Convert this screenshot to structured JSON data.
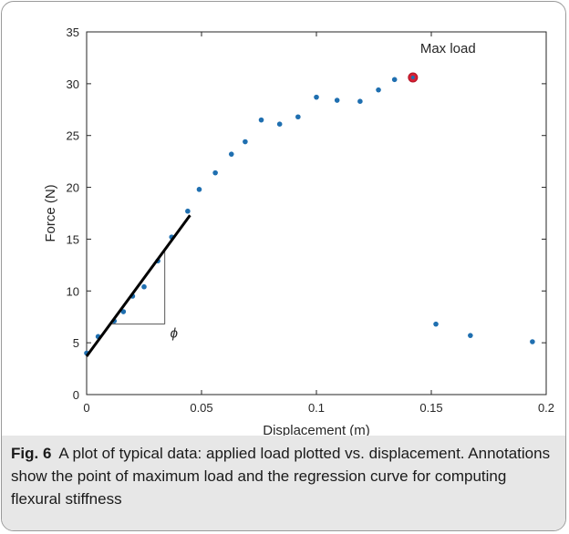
{
  "chart_data": {
    "type": "scatter",
    "xlabel": "Displacement (m)",
    "ylabel": "Force (N)",
    "xlim": [
      0,
      0.2
    ],
    "ylim": [
      0,
      35
    ],
    "xticks": [
      0,
      0.05,
      0.1,
      0.15,
      0.2
    ],
    "xtick_labels": [
      "0",
      "0.05",
      "0.1",
      "0.15",
      "0.2"
    ],
    "yticks": [
      0,
      5,
      10,
      15,
      20,
      25,
      30,
      35
    ],
    "ytick_labels": [
      "0",
      "5",
      "10",
      "15",
      "20",
      "25",
      "30",
      "35"
    ],
    "grid": false,
    "marker_color": "#1f6fb0",
    "highlight_color": "#d62034",
    "line_color": "#000000",
    "points": [
      {
        "x": 0.0,
        "y": 4.0
      },
      {
        "x": 0.005,
        "y": 5.6
      },
      {
        "x": 0.012,
        "y": 7.1
      },
      {
        "x": 0.016,
        "y": 8.0
      },
      {
        "x": 0.02,
        "y": 9.5
      },
      {
        "x": 0.025,
        "y": 10.4
      },
      {
        "x": 0.031,
        "y": 12.9
      },
      {
        "x": 0.037,
        "y": 15.2
      },
      {
        "x": 0.044,
        "y": 17.7
      },
      {
        "x": 0.049,
        "y": 19.8
      },
      {
        "x": 0.056,
        "y": 21.4
      },
      {
        "x": 0.063,
        "y": 23.2
      },
      {
        "x": 0.069,
        "y": 24.4
      },
      {
        "x": 0.076,
        "y": 26.5
      },
      {
        "x": 0.084,
        "y": 26.1
      },
      {
        "x": 0.092,
        "y": 26.8
      },
      {
        "x": 0.1,
        "y": 28.7
      },
      {
        "x": 0.109,
        "y": 28.4
      },
      {
        "x": 0.119,
        "y": 28.3
      },
      {
        "x": 0.127,
        "y": 29.4
      },
      {
        "x": 0.134,
        "y": 30.4
      },
      {
        "x": 0.152,
        "y": 6.8
      },
      {
        "x": 0.167,
        "y": 5.7
      },
      {
        "x": 0.194,
        "y": 5.1
      }
    ],
    "max_load": {
      "x": 0.142,
      "y": 30.6,
      "label": "Max load"
    },
    "regression_line": {
      "x": [
        0.0,
        0.045
      ],
      "y": [
        3.7,
        17.3
      ]
    },
    "slope_triangle": {
      "x": [
        0.011,
        0.034
      ],
      "y": [
        6.8,
        14.0
      ],
      "label": "ϕ"
    }
  },
  "caption": {
    "label": "Fig. 6",
    "text": "A plot of typical data: applied load plotted vs. displacement. Annotations show the point of maximum load and the regression curve for computing flexural stiffness"
  }
}
